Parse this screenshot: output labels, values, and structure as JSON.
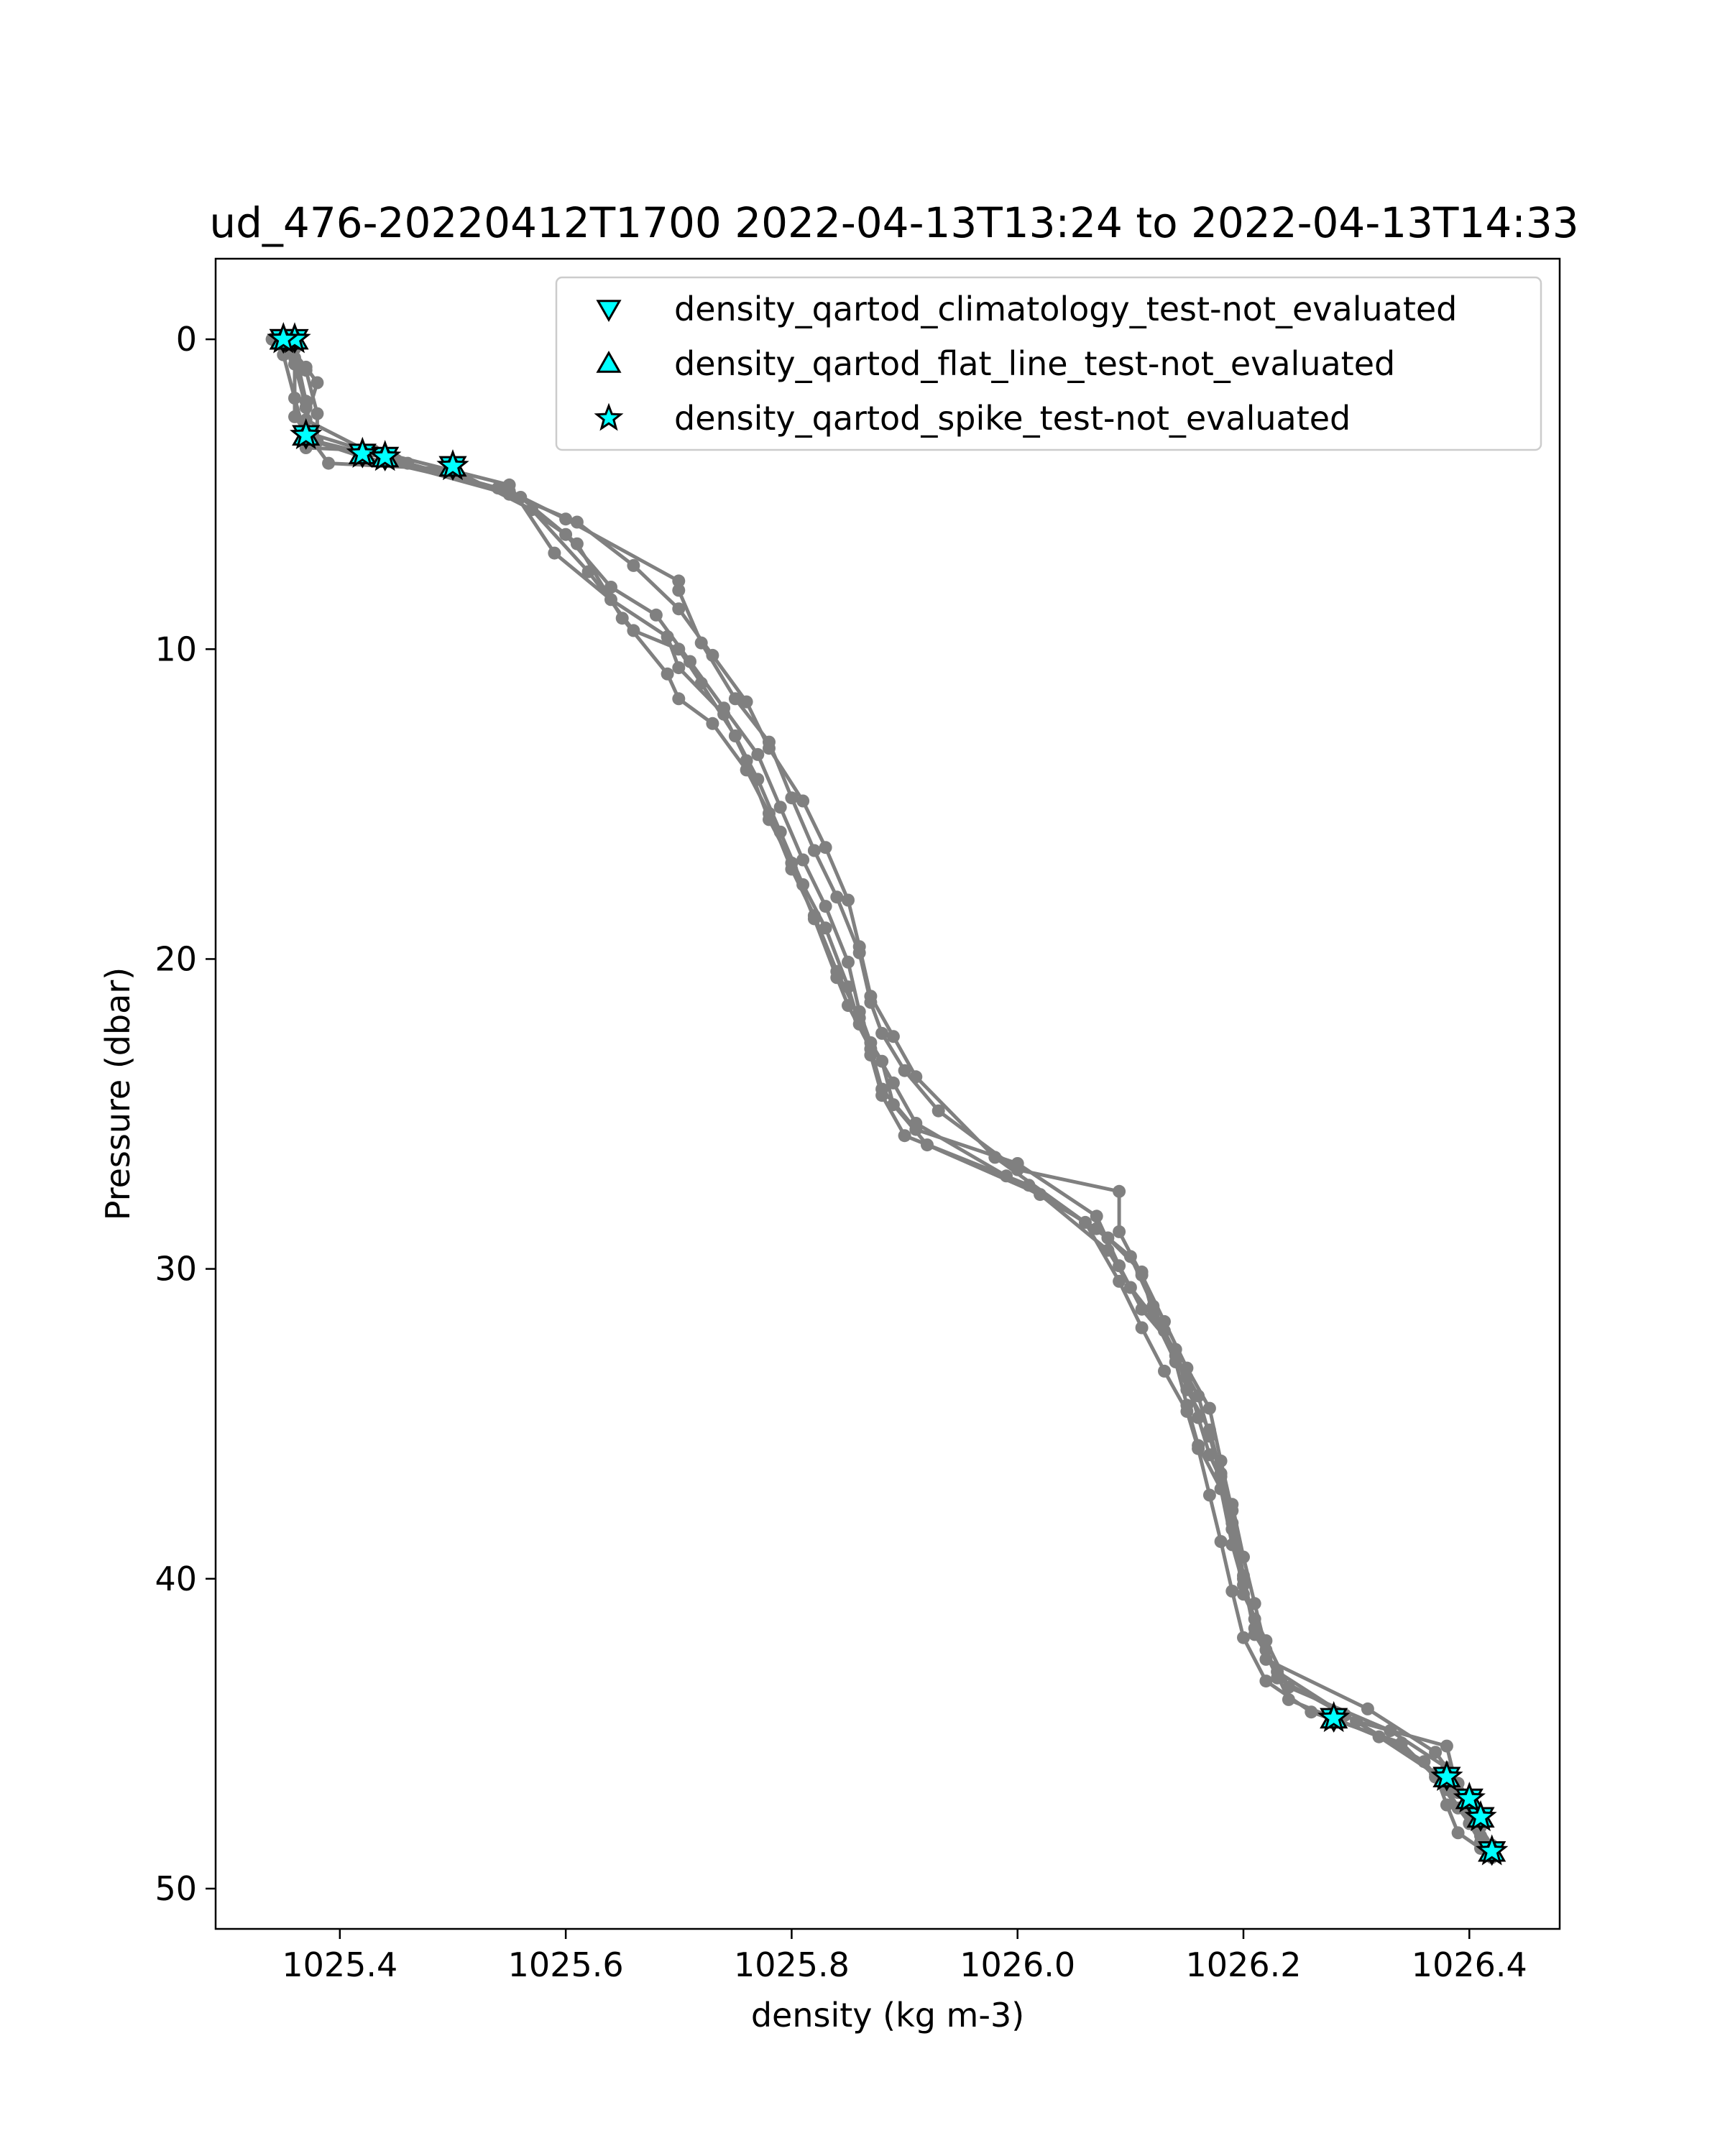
{
  "chart_data": {
    "type": "scatter",
    "title": "ud_476-20220412T1700 2022-04-13T13:24 to 2022-04-13T14:33",
    "xlabel": "density (kg m-3)",
    "ylabel": "Pressure (dbar)",
    "xlim": [
      1025.29,
      1026.48
    ],
    "ylim": [
      51.3,
      -2.6
    ],
    "y_inverted": true,
    "grid": false,
    "legend_position": "upper right",
    "x_ticks": [
      1025.4,
      1025.6,
      1025.8,
      1026.0,
      1026.2,
      1026.4
    ],
    "x_tick_labels": [
      "1025.4",
      "1025.6",
      "1025.8",
      "1026.0",
      "1026.2",
      "1026.4"
    ],
    "y_ticks": [
      0,
      10,
      20,
      30,
      40,
      50
    ],
    "y_tick_labels": [
      "0",
      "10",
      "20",
      "30",
      "40",
      "50"
    ],
    "profile_color": "#808080",
    "profiles": [
      {
        "x": [
          1025.35,
          1025.36,
          1025.37,
          1025.37,
          1025.45,
          1025.55,
          1025.6,
          1025.7,
          1025.7,
          1025.72,
          1025.75,
          1025.78,
          1025.8,
          1025.82,
          1025.84,
          1025.86,
          1025.87,
          1025.88,
          1025.9,
          1025.93,
          1026.0,
          1026.09,
          1026.09,
          1026.11,
          1026.13,
          1026.15,
          1026.17,
          1026.18,
          1026.19,
          1026.2,
          1026.21,
          1026.23,
          1026.3,
          1026.38,
          1026.39,
          1026.41,
          1026.42
        ],
        "y": [
          0.0,
          0.8,
          2.2,
          3.0,
          3.9,
          4.9,
          5.8,
          7.8,
          8.1,
          9.8,
          11.6,
          13.0,
          14.8,
          16.5,
          18.0,
          19.8,
          21.4,
          22.4,
          23.6,
          24.9,
          26.8,
          27.5,
          28.8,
          30.2,
          31.7,
          33.2,
          34.5,
          36.2,
          37.8,
          39.9,
          41.6,
          43.2,
          44.6,
          45.4,
          46.9,
          48.0,
          48.9
        ]
      },
      {
        "x": [
          1025.34,
          1025.35,
          1025.36,
          1025.37,
          1025.42,
          1025.54,
          1025.6,
          1025.64,
          1025.68,
          1025.71,
          1025.74,
          1025.77,
          1025.79,
          1025.81,
          1025.83,
          1025.85,
          1025.86,
          1025.87,
          1025.89,
          1025.91,
          1025.99,
          1026.07,
          1026.1,
          1026.12,
          1026.14,
          1026.16,
          1026.17,
          1026.18,
          1026.19,
          1026.2,
          1026.22,
          1026.24,
          1026.33,
          1026.38,
          1026.4,
          1026.41,
          1026.42
        ],
        "y": [
          0.0,
          0.5,
          1.9,
          3.2,
          3.8,
          4.8,
          6.3,
          8.0,
          8.9,
          10.4,
          11.9,
          13.4,
          15.1,
          16.8,
          18.3,
          20.1,
          21.7,
          22.7,
          24.0,
          25.3,
          27.0,
          28.7,
          29.6,
          31.2,
          32.8,
          34.1,
          35.4,
          36.7,
          38.4,
          40.5,
          42.0,
          43.5,
          44.9,
          46.1,
          47.1,
          48.3,
          49.0
        ]
      },
      {
        "x": [
          1025.35,
          1025.37,
          1025.38,
          1025.37,
          1025.44,
          1025.56,
          1025.61,
          1025.65,
          1025.69,
          1025.7,
          1025.73,
          1025.76,
          1025.78,
          1025.8,
          1025.82,
          1025.84,
          1025.86,
          1025.87,
          1025.88,
          1025.9,
          1026.01,
          1026.08,
          1026.11,
          1026.12,
          1026.14,
          1026.15,
          1026.16,
          1026.18,
          1026.19,
          1026.2,
          1026.21,
          1026.22,
          1026.31,
          1026.37,
          1026.39,
          1026.4,
          1026.42
        ],
        "y": [
          0.0,
          0.9,
          1.4,
          2.6,
          3.9,
          5.1,
          6.6,
          9.0,
          10.8,
          11.6,
          12.4,
          13.9,
          15.3,
          17.1,
          18.6,
          20.4,
          21.9,
          23.1,
          24.4,
          25.7,
          27.3,
          29.0,
          30.1,
          31.5,
          33.0,
          34.4,
          35.7,
          37.1,
          38.9,
          40.2,
          41.3,
          42.6,
          44.2,
          45.6,
          46.6,
          47.5,
          48.6
        ]
      },
      {
        "x": [
          1025.35,
          1025.36,
          1025.36,
          1025.39,
          1025.5,
          1025.57,
          1025.62,
          1025.66,
          1025.7,
          1025.72,
          1025.75,
          1025.77,
          1025.79,
          1025.81,
          1025.83,
          1025.85,
          1025.86,
          1025.88,
          1025.89,
          1025.92,
          1026.02,
          1026.08,
          1026.1,
          1026.13,
          1026.15,
          1026.16,
          1026.17,
          1026.19,
          1026.2,
          1026.21,
          1026.22,
          1026.24,
          1026.32,
          1026.37,
          1026.38,
          1026.39,
          1026.41
        ],
        "y": [
          0.0,
          0.6,
          2.5,
          4.0,
          4.2,
          5.5,
          7.5,
          9.4,
          10.0,
          11.1,
          12.8,
          14.2,
          15.9,
          17.6,
          19.0,
          20.9,
          22.1,
          23.3,
          24.7,
          26.0,
          27.6,
          29.4,
          30.6,
          32.0,
          33.5,
          34.8,
          36.0,
          37.6,
          39.3,
          40.8,
          42.3,
          43.9,
          45.1,
          46.3,
          47.3,
          48.2,
          48.7
        ]
      },
      {
        "x": [
          1025.36,
          1025.36,
          1025.37,
          1025.37,
          1025.43,
          1025.55,
          1025.59,
          1025.64,
          1025.69,
          1025.7,
          1025.74,
          1025.76,
          1025.78,
          1025.8,
          1025.82,
          1025.84,
          1025.85,
          1025.87,
          1025.88,
          1025.91,
          1026.0,
          1026.07,
          1026.09,
          1026.11,
          1026.14,
          1026.15,
          1026.17,
          1026.18,
          1026.19,
          1026.2,
          1026.21,
          1026.23,
          1026.29,
          1026.36,
          1026.38,
          1026.4,
          1026.41
        ],
        "y": [
          0.0,
          0.3,
          2.0,
          3.5,
          3.6,
          4.7,
          6.9,
          8.4,
          9.6,
          10.6,
          12.1,
          13.6,
          15.5,
          16.9,
          18.7,
          20.6,
          21.5,
          22.9,
          24.2,
          25.5,
          26.6,
          28.3,
          29.9,
          31.3,
          32.6,
          33.9,
          35.2,
          36.6,
          38.2,
          40.0,
          41.8,
          43.0,
          44.4,
          45.9,
          46.8,
          47.9,
          48.5
        ]
      },
      {
        "x": [
          1025.35,
          1025.37,
          1025.38,
          1025.38,
          1025.46,
          1025.55,
          1025.61,
          1025.66,
          1025.7,
          1025.73,
          1025.76,
          1025.78,
          1025.81,
          1025.83,
          1025.85,
          1025.86,
          1025.87,
          1025.89,
          1025.91,
          1025.98,
          1026.06,
          1026.09,
          1026.11,
          1026.13,
          1026.15,
          1026.16,
          1026.17,
          1026.18,
          1026.19,
          1026.2,
          1026.22,
          1026.26,
          1026.34,
          1026.37,
          1026.39,
          1026.42
        ],
        "y": [
          0.0,
          1.0,
          2.4,
          3.3,
          4.0,
          5.0,
          5.9,
          7.3,
          8.7,
          10.2,
          11.7,
          13.2,
          14.9,
          16.4,
          18.1,
          19.6,
          21.2,
          22.5,
          23.8,
          26.4,
          28.5,
          30.4,
          31.9,
          33.3,
          34.6,
          35.8,
          37.3,
          38.8,
          40.4,
          41.9,
          43.3,
          44.3,
          45.3,
          46.4,
          47.4,
          48.8
        ]
      }
    ],
    "marker_color": "#00ffff",
    "marker_edge_color": "#000000",
    "series": [
      {
        "name": "density_qartod_climatology_test-not_evaluated",
        "marker": "triangle-down",
        "x": [
          1025.35,
          1025.36,
          1025.35,
          1025.37,
          1025.42,
          1025.44,
          1025.5,
          1026.28,
          1026.38,
          1026.4,
          1026.41,
          1026.42
        ],
        "y": [
          0.0,
          0.0,
          0.0,
          3.1,
          3.7,
          3.8,
          4.1,
          44.5,
          46.4,
          47.1,
          47.7,
          48.8
        ]
      },
      {
        "name": "density_qartod_flat_line_test-not_evaluated",
        "marker": "triangle-up",
        "x": [
          1025.35,
          1025.36,
          1025.35,
          1025.37,
          1025.42,
          1025.44,
          1025.5,
          1026.28,
          1026.38,
          1026.4,
          1026.41,
          1026.42
        ],
        "y": [
          0.0,
          0.0,
          0.0,
          3.1,
          3.7,
          3.8,
          4.1,
          44.5,
          46.4,
          47.1,
          47.7,
          48.8
        ]
      },
      {
        "name": "density_qartod_spike_test-not_evaluated",
        "marker": "star",
        "x": [
          1025.35,
          1025.36,
          1025.35,
          1025.37,
          1025.42,
          1025.44,
          1025.5,
          1026.28,
          1026.38,
          1026.4,
          1026.41,
          1026.42
        ],
        "y": [
          0.0,
          0.0,
          0.0,
          3.1,
          3.7,
          3.8,
          4.1,
          44.5,
          46.4,
          47.1,
          47.7,
          48.8
        ]
      }
    ]
  }
}
